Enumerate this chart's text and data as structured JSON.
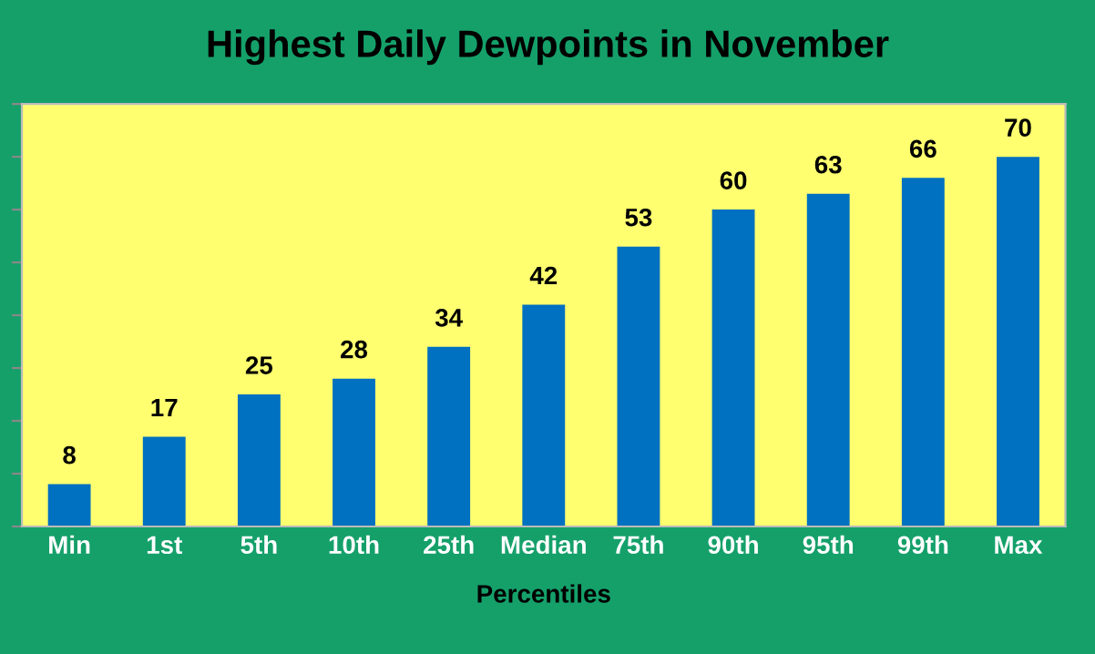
{
  "chart_data": {
    "type": "bar",
    "title": "Highest Daily Dewpoints in November",
    "xlabel": "Percentiles",
    "categories": [
      "Min",
      "1st",
      "5th",
      "10th",
      "25th",
      "Median",
      "75th",
      "90th",
      "95th",
      "99th",
      "Max"
    ],
    "values": [
      8,
      17,
      25,
      28,
      34,
      42,
      53,
      60,
      63,
      66,
      70
    ],
    "color": "#0070c0",
    "ylim": [
      0,
      80
    ],
    "yticks": [
      {
        "value": 0,
        "label": null
      },
      {
        "value": 10,
        "label": null
      },
      {
        "value": 20,
        "label": null
      },
      {
        "value": 30,
        "label": null
      },
      {
        "value": 40,
        "label": null
      },
      {
        "value": 50,
        "label": null
      },
      {
        "value": 60,
        "label": null
      },
      {
        "value": 70,
        "label": null
      },
      {
        "value": 80,
        "label": null
      }
    ],
    "data_labels": true,
    "tick_labels": "x",
    "grid": false
  }
}
